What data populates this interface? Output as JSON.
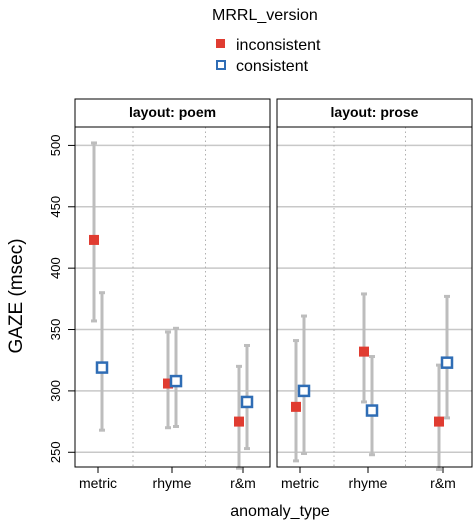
{
  "chart_data": {
    "type": "scatter",
    "legend": {
      "title": "MRRL_version",
      "placement": "top",
      "entries": [
        {
          "name": "inconsistent",
          "color": "#e03c31",
          "marker": "filled-square"
        },
        {
          "name": "consistent",
          "color": "#2f6db5",
          "marker": "open-square"
        }
      ]
    },
    "xlabel": "anomaly_type",
    "ylabel": "GAZE (msec)",
    "ylim": [
      238,
      515
    ],
    "yticks": [
      250,
      300,
      350,
      400,
      450,
      500
    ],
    "categories": [
      "metric",
      "rhyme",
      "r&m"
    ],
    "panels": [
      {
        "label": "layout: poem",
        "series": [
          {
            "name": "inconsistent",
            "points": [
              {
                "x": "metric",
                "y": 423,
                "low": 357,
                "high": 502
              },
              {
                "x": "rhyme",
                "y": 306,
                "low": 270,
                "high": 348
              },
              {
                "x": "r&m",
                "y": 275,
                "low": 237,
                "high": 320
              }
            ]
          },
          {
            "name": "consistent",
            "points": [
              {
                "x": "metric",
                "y": 319,
                "low": 268,
                "high": 380
              },
              {
                "x": "rhyme",
                "y": 308,
                "low": 271,
                "high": 351
              },
              {
                "x": "r&m",
                "y": 291,
                "low": 253,
                "high": 337
              }
            ]
          }
        ]
      },
      {
        "label": "layout: prose",
        "series": [
          {
            "name": "inconsistent",
            "points": [
              {
                "x": "metric",
                "y": 287,
                "low": 243,
                "high": 341
              },
              {
                "x": "rhyme",
                "y": 332,
                "low": 291,
                "high": 379
              },
              {
                "x": "r&m",
                "y": 275,
                "low": 236,
                "high": 321
              }
            ]
          },
          {
            "name": "consistent",
            "points": [
              {
                "x": "metric",
                "y": 300,
                "low": 249,
                "high": 361
              },
              {
                "x": "rhyme",
                "y": 284,
                "low": 248,
                "high": 328
              },
              {
                "x": "r&m",
                "y": 323,
                "low": 278,
                "high": 377
              }
            ]
          }
        ]
      }
    ],
    "grid": true
  }
}
